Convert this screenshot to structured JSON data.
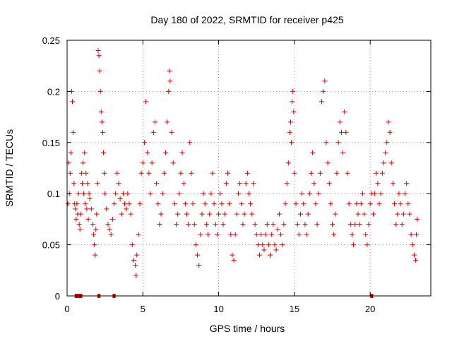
{
  "chart_data": {
    "type": "scatter",
    "title": "Day 180 of 2022, SRMTID for receiver p425",
    "xlabel": "GPS time / hours",
    "ylabel": "SRMTID / TECUs",
    "xlim": [
      0,
      24
    ],
    "ylim": [
      0,
      0.25
    ],
    "x_ticks": [
      0,
      5,
      10,
      15,
      20
    ],
    "x_tick_labels": [
      "0",
      "5",
      "10",
      "15",
      "20"
    ],
    "y_ticks": [
      0,
      0.05,
      0.1,
      0.15,
      0.2,
      0.25
    ],
    "y_tick_labels": [
      "0",
      "0.05",
      "0.1",
      "0.15",
      "0.2",
      "0.25"
    ],
    "grid": true,
    "marker": "+",
    "color": "#e00000",
    "series": [
      {
        "name": "SRMTID",
        "points": [
          [
            0.05,
            0.09
          ],
          [
            0.1,
            0.13
          ],
          [
            0.15,
            0.1
          ],
          [
            0.2,
            0.12
          ],
          [
            0.25,
            0.14
          ],
          [
            0.3,
            0.2
          ],
          [
            0.35,
            0.19
          ],
          [
            0.4,
            0.16
          ],
          [
            0.45,
            0.11
          ],
          [
            0.5,
            0.09
          ],
          [
            0.55,
            0.085
          ],
          [
            0.6,
            0.075
          ],
          [
            0.65,
            0.09
          ],
          [
            0.7,
            0.08
          ],
          [
            0.75,
            0.1
          ],
          [
            0.8,
            0.07
          ],
          [
            0.85,
            0.065
          ],
          [
            0.9,
            0.08
          ],
          [
            0.95,
            0.12
          ],
          [
            1.0,
            0.11
          ],
          [
            1.05,
            0.13
          ],
          [
            1.1,
            0.1
          ],
          [
            1.15,
            0.14
          ],
          [
            1.2,
            0.09
          ],
          [
            1.25,
            0.12
          ],
          [
            1.3,
            0.085
          ],
          [
            1.35,
            0.11
          ],
          [
            1.4,
            0.075
          ],
          [
            1.45,
            0.1
          ],
          [
            1.5,
            0.095
          ],
          [
            1.6,
            0.085
          ],
          [
            1.7,
            0.07
          ],
          [
            1.75,
            0.06
          ],
          [
            1.8,
            0.05
          ],
          [
            1.85,
            0.04
          ],
          [
            1.9,
            0.065
          ],
          [
            1.95,
            0.08
          ],
          [
            2.0,
            0.11
          ],
          [
            2.05,
            0.24
          ],
          [
            2.1,
            0.235
          ],
          [
            2.15,
            0.22
          ],
          [
            2.2,
            0.2
          ],
          [
            2.25,
            0.18
          ],
          [
            2.3,
            0.17
          ],
          [
            2.35,
            0.16
          ],
          [
            2.4,
            0.14
          ],
          [
            2.45,
            0.12
          ],
          [
            2.5,
            0.1
          ],
          [
            2.6,
            0.085
          ],
          [
            2.7,
            0.07
          ],
          [
            2.8,
            0.065
          ],
          [
            2.9,
            0.06
          ],
          [
            3.0,
            0.075
          ],
          [
            3.1,
            0.09
          ],
          [
            3.2,
            0.1
          ],
          [
            3.3,
            0.12
          ],
          [
            3.4,
            0.11
          ],
          [
            3.5,
            0.095
          ],
          [
            3.6,
            0.08
          ],
          [
            3.7,
            0.1
          ],
          [
            3.8,
            0.09
          ],
          [
            3.9,
            0.085
          ],
          [
            4.0,
            0.1
          ],
          [
            4.1,
            0.09
          ],
          [
            4.2,
            0.08
          ],
          [
            4.3,
            0.05
          ],
          [
            4.4,
            0.035
          ],
          [
            4.5,
            0.03
          ],
          [
            4.55,
            0.02
          ],
          [
            4.6,
            0.04
          ],
          [
            4.7,
            0.06
          ],
          [
            4.8,
            0.09
          ],
          [
            4.9,
            0.12
          ],
          [
            5.0,
            0.13
          ],
          [
            5.1,
            0.15
          ],
          [
            5.2,
            0.19
          ],
          [
            5.3,
            0.14
          ],
          [
            5.4,
            0.12
          ],
          [
            5.5,
            0.1
          ],
          [
            5.6,
            0.13
          ],
          [
            5.7,
            0.16
          ],
          [
            5.8,
            0.17
          ],
          [
            5.9,
            0.11
          ],
          [
            6.0,
            0.09
          ],
          [
            6.1,
            0.07
          ],
          [
            6.2,
            0.08
          ],
          [
            6.3,
            0.1
          ],
          [
            6.4,
            0.12
          ],
          [
            6.5,
            0.14
          ],
          [
            6.6,
            0.17
          ],
          [
            6.7,
            0.2
          ],
          [
            6.75,
            0.22
          ],
          [
            6.8,
            0.21
          ],
          [
            6.9,
            0.16
          ],
          [
            7.0,
            0.13
          ],
          [
            7.1,
            0.09
          ],
          [
            7.2,
            0.07
          ],
          [
            7.3,
            0.08
          ],
          [
            7.4,
            0.1
          ],
          [
            7.5,
            0.12
          ],
          [
            7.6,
            0.14
          ],
          [
            7.7,
            0.11
          ],
          [
            7.8,
            0.09
          ],
          [
            7.9,
            0.08
          ],
          [
            8.0,
            0.07
          ],
          [
            8.1,
            0.15
          ],
          [
            8.2,
            0.12
          ],
          [
            8.3,
            0.09
          ],
          [
            8.4,
            0.07
          ],
          [
            8.5,
            0.05
          ],
          [
            8.6,
            0.04
          ],
          [
            8.7,
            0.03
          ],
          [
            8.8,
            0.06
          ],
          [
            8.9,
            0.08
          ],
          [
            9.0,
            0.1
          ],
          [
            9.1,
            0.09
          ],
          [
            9.2,
            0.07
          ],
          [
            9.3,
            0.06
          ],
          [
            9.4,
            0.08
          ],
          [
            9.5,
            0.1
          ],
          [
            9.6,
            0.12
          ],
          [
            9.7,
            0.09
          ],
          [
            9.8,
            0.07
          ],
          [
            9.9,
            0.06
          ],
          [
            10.0,
            0.08
          ],
          [
            10.1,
            0.1
          ],
          [
            10.2,
            0.09
          ],
          [
            10.3,
            0.07
          ],
          [
            10.4,
            0.08
          ],
          [
            10.5,
            0.11
          ],
          [
            10.6,
            0.12
          ],
          [
            10.7,
            0.09
          ],
          [
            10.8,
            0.06
          ],
          [
            10.9,
            0.04
          ],
          [
            11.0,
            0.035
          ],
          [
            11.1,
            0.06
          ],
          [
            11.2,
            0.08
          ],
          [
            11.3,
            0.1
          ],
          [
            11.4,
            0.11
          ],
          [
            11.5,
            0.09
          ],
          [
            11.6,
            0.07
          ],
          [
            11.7,
            0.08
          ],
          [
            11.8,
            0.11
          ],
          [
            11.9,
            0.12
          ],
          [
            12.0,
            0.1
          ],
          [
            12.1,
            0.09
          ],
          [
            12.2,
            0.08
          ],
          [
            12.3,
            0.11
          ],
          [
            12.4,
            0.07
          ],
          [
            12.5,
            0.06
          ],
          [
            12.6,
            0.05
          ],
          [
            12.7,
            0.04
          ],
          [
            12.8,
            0.06
          ],
          [
            12.9,
            0.05
          ],
          [
            13.0,
            0.045
          ],
          [
            13.1,
            0.06
          ],
          [
            13.2,
            0.07
          ],
          [
            13.3,
            0.05
          ],
          [
            13.4,
            0.04
          ],
          [
            13.5,
            0.06
          ],
          [
            13.6,
            0.07
          ],
          [
            13.7,
            0.05
          ],
          [
            13.8,
            0.045
          ],
          [
            13.9,
            0.065
          ],
          [
            14.0,
            0.08
          ],
          [
            14.1,
            0.06
          ],
          [
            14.2,
            0.05
          ],
          [
            14.3,
            0.07
          ],
          [
            14.4,
            0.09
          ],
          [
            14.5,
            0.11
          ],
          [
            14.6,
            0.13
          ],
          [
            14.7,
            0.16
          ],
          [
            14.75,
            0.17
          ],
          [
            14.8,
            0.15
          ],
          [
            14.85,
            0.19
          ],
          [
            14.9,
            0.2
          ],
          [
            14.95,
            0.18
          ],
          [
            15.0,
            0.12
          ],
          [
            15.1,
            0.09
          ],
          [
            15.2,
            0.07
          ],
          [
            15.3,
            0.06
          ],
          [
            15.4,
            0.08
          ],
          [
            15.5,
            0.1
          ],
          [
            15.6,
            0.09
          ],
          [
            15.7,
            0.07
          ],
          [
            15.8,
            0.06
          ],
          [
            15.9,
            0.08
          ],
          [
            16.0,
            0.1
          ],
          [
            16.1,
            0.12
          ],
          [
            16.2,
            0.14
          ],
          [
            16.3,
            0.11
          ],
          [
            16.4,
            0.09
          ],
          [
            16.5,
            0.07
          ],
          [
            16.6,
            0.1
          ],
          [
            16.7,
            0.12
          ],
          [
            16.8,
            0.19
          ],
          [
            16.9,
            0.2
          ],
          [
            17.0,
            0.21
          ],
          [
            17.1,
            0.15
          ],
          [
            17.2,
            0.13
          ],
          [
            17.3,
            0.11
          ],
          [
            17.4,
            0.09
          ],
          [
            17.5,
            0.07
          ],
          [
            17.6,
            0.06
          ],
          [
            17.7,
            0.08
          ],
          [
            17.8,
            0.12
          ],
          [
            17.9,
            0.15
          ],
          [
            18.0,
            0.17
          ],
          [
            18.1,
            0.16
          ],
          [
            18.2,
            0.14
          ],
          [
            18.3,
            0.18
          ],
          [
            18.4,
            0.16
          ],
          [
            18.5,
            0.12
          ],
          [
            18.6,
            0.09
          ],
          [
            18.7,
            0.07
          ],
          [
            18.8,
            0.06
          ],
          [
            18.9,
            0.05
          ],
          [
            19.0,
            0.07
          ],
          [
            19.1,
            0.09
          ],
          [
            19.2,
            0.08
          ],
          [
            19.3,
            0.07
          ],
          [
            19.4,
            0.09
          ],
          [
            19.5,
            0.1
          ],
          [
            19.6,
            0.08
          ],
          [
            19.7,
            0.06
          ],
          [
            19.8,
            0.05
          ],
          [
            19.9,
            0.07
          ],
          [
            20.0,
            0.09
          ],
          [
            20.1,
            0.1
          ],
          [
            20.2,
            0.08
          ],
          [
            20.3,
            0.1
          ],
          [
            20.4,
            0.12
          ],
          [
            20.5,
            0.11
          ],
          [
            20.6,
            0.09
          ],
          [
            20.7,
            0.1
          ],
          [
            20.8,
            0.12
          ],
          [
            20.9,
            0.13
          ],
          [
            21.0,
            0.14
          ],
          [
            21.1,
            0.15
          ],
          [
            21.2,
            0.17
          ],
          [
            21.3,
            0.16
          ],
          [
            21.4,
            0.13
          ],
          [
            21.5,
            0.11
          ],
          [
            21.6,
            0.09
          ],
          [
            21.7,
            0.07
          ],
          [
            21.8,
            0.08
          ],
          [
            21.9,
            0.1
          ],
          [
            22.0,
            0.09
          ],
          [
            22.1,
            0.07
          ],
          [
            22.2,
            0.08
          ],
          [
            22.3,
            0.1
          ],
          [
            22.4,
            0.11
          ],
          [
            22.5,
            0.09
          ],
          [
            22.6,
            0.08
          ],
          [
            22.7,
            0.06
          ],
          [
            22.8,
            0.05
          ],
          [
            22.9,
            0.04
          ],
          [
            23.0,
            0.035
          ],
          [
            23.05,
            0.06
          ],
          [
            23.1,
            0.075
          ]
        ]
      }
    ],
    "gap_markers": [
      {
        "x_start": 0.5,
        "x_end": 1.0
      },
      {
        "x_start": 2.0,
        "x_end": 2.2
      },
      {
        "x_start": 3.0,
        "x_end": 3.2
      },
      {
        "x_start": 20.0,
        "x_end": 20.2
      }
    ]
  }
}
